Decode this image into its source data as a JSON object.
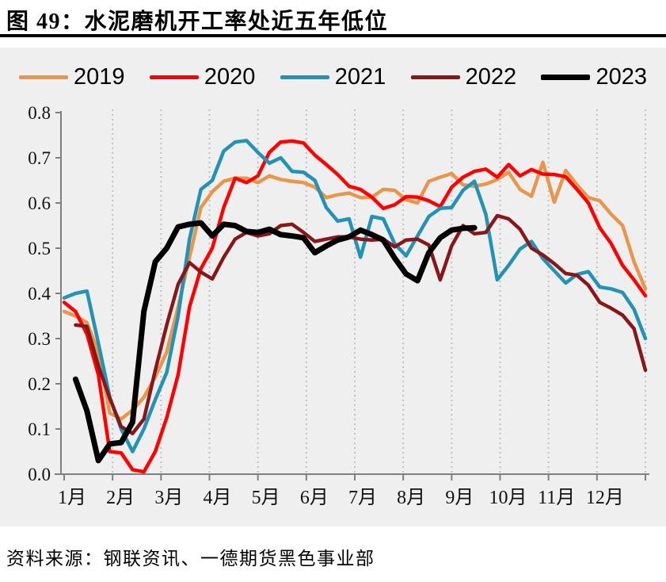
{
  "header": {
    "title": "图 49：水泥磨机开工率处近五年低位"
  },
  "footer": {
    "source_note": "资料来源：钢联资讯、一德期货黑色事业部"
  },
  "chart_data": {
    "type": "line",
    "title": "水泥磨机开工率处近五年低位",
    "xlabel": "",
    "ylabel": "",
    "x_unit": "week-of-year (52 points per series)",
    "x_month_ticks": [
      "1月",
      "2月",
      "3月",
      "4月",
      "5月",
      "6月",
      "7月",
      "8月",
      "9月",
      "10月",
      "11月",
      "12月"
    ],
    "y_tick_labels": [
      "0.0",
      "0.1",
      "0.2",
      "0.3",
      "0.4",
      "0.5",
      "0.6",
      "0.7",
      "0.8"
    ],
    "ylim": [
      0,
      0.8
    ],
    "grid": "vertical-dotted",
    "legend_position": "top",
    "panel_bg": "#EFEFEF",
    "grid_color": "#C2C2C2",
    "axis_color": "#7F7F7F",
    "series": [
      {
        "name": "2019",
        "color": "#E8964B",
        "width": 4.5,
        "values": [
          0.36,
          0.35,
          0.335,
          0.27,
          0.135,
          0.122,
          0.142,
          0.17,
          0.215,
          0.27,
          0.37,
          0.48,
          0.59,
          0.625,
          0.648,
          0.655,
          0.655,
          0.645,
          0.66,
          0.652,
          0.648,
          0.645,
          0.635,
          0.612,
          0.618,
          0.622,
          0.612,
          0.613,
          0.63,
          0.628,
          0.607,
          0.6,
          0.648,
          0.657,
          0.665,
          0.64,
          0.637,
          0.642,
          0.652,
          0.668,
          0.63,
          0.615,
          0.69,
          0.602,
          0.672,
          0.64,
          0.612,
          0.605,
          0.575,
          0.55,
          0.47,
          0.41
        ]
      },
      {
        "name": "2020",
        "color": "#FE0000",
        "width": 4.5,
        "values": [
          0.38,
          0.36,
          0.31,
          0.22,
          0.05,
          0.047,
          0.01,
          0.005,
          0.05,
          0.125,
          0.22,
          0.37,
          0.455,
          0.5,
          0.59,
          0.655,
          0.645,
          0.66,
          0.712,
          0.735,
          0.737,
          0.733,
          0.706,
          0.685,
          0.663,
          0.637,
          0.63,
          0.613,
          0.588,
          0.596,
          0.614,
          0.613,
          0.605,
          0.592,
          0.635,
          0.657,
          0.67,
          0.675,
          0.657,
          0.685,
          0.66,
          0.674,
          0.664,
          0.663,
          0.658,
          0.63,
          0.6,
          0.545,
          0.51,
          0.462,
          0.43,
          0.395
        ]
      },
      {
        "name": "2021",
        "color": "#2293B5",
        "width": 4.5,
        "values": [
          0.39,
          0.4,
          0.405,
          0.29,
          0.17,
          0.1,
          0.05,
          0.1,
          0.165,
          0.225,
          0.35,
          0.52,
          0.63,
          0.65,
          0.715,
          0.735,
          0.738,
          0.712,
          0.688,
          0.7,
          0.67,
          0.668,
          0.65,
          0.59,
          0.56,
          0.565,
          0.48,
          0.57,
          0.565,
          0.51,
          0.483,
          0.527,
          0.57,
          0.588,
          0.59,
          0.628,
          0.648,
          0.575,
          0.43,
          0.462,
          0.498,
          0.515,
          0.477,
          0.45,
          0.423,
          0.442,
          0.448,
          0.414,
          0.41,
          0.402,
          0.365,
          0.3
        ]
      },
      {
        "name": "2022",
        "color": "#871719",
        "width": 4.5,
        "values": [
          null,
          0.33,
          0.327,
          0.24,
          0.168,
          0.105,
          0.09,
          0.122,
          0.23,
          0.33,
          0.42,
          0.468,
          0.447,
          0.432,
          0.48,
          0.52,
          0.535,
          0.527,
          0.532,
          0.55,
          0.553,
          0.535,
          0.515,
          0.52,
          0.525,
          0.525,
          0.52,
          0.518,
          0.52,
          0.503,
          0.518,
          0.52,
          0.507,
          0.43,
          0.505,
          0.55,
          0.532,
          0.535,
          0.572,
          0.565,
          0.542,
          0.5,
          0.485,
          0.466,
          0.444,
          0.44,
          0.418,
          0.38,
          0.367,
          0.352,
          0.322,
          0.23
        ]
      },
      {
        "name": "2023",
        "color": "#000000",
        "width": 7,
        "values": [
          null,
          0.21,
          0.14,
          0.03,
          0.067,
          0.07,
          0.115,
          0.36,
          0.47,
          0.5,
          0.547,
          0.553,
          0.556,
          0.527,
          0.553,
          0.55,
          0.537,
          0.535,
          0.542,
          0.53,
          0.527,
          0.523,
          0.49,
          0.505,
          0.518,
          0.525,
          0.54,
          0.53,
          0.518,
          0.478,
          0.443,
          0.428,
          0.49,
          0.523,
          0.54,
          0.544,
          0.545,
          null,
          null,
          null,
          null,
          null,
          null,
          null,
          null,
          null,
          null,
          null,
          null,
          null,
          null,
          null
        ]
      }
    ]
  }
}
